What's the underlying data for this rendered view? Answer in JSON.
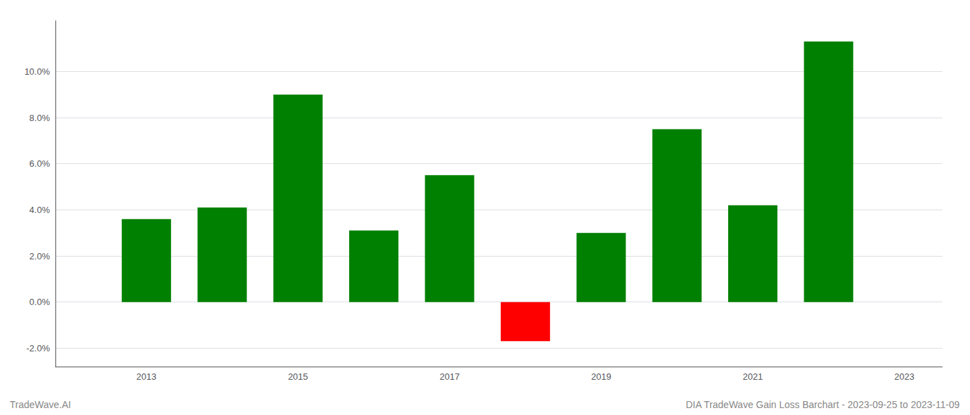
{
  "chart_data": {
    "type": "bar",
    "x": [
      2013,
      2014,
      2015,
      2016,
      2017,
      2018,
      2019,
      2020,
      2021,
      2022
    ],
    "values": [
      0.036,
      0.041,
      0.09,
      0.031,
      0.055,
      -0.017,
      0.03,
      0.075,
      0.042,
      0.113
    ],
    "colors": [
      "#008000",
      "#008000",
      "#008000",
      "#008000",
      "#008000",
      "#ff0000",
      "#008000",
      "#008000",
      "#008000",
      "#008000"
    ],
    "xlim": [
      2011.8,
      2023.5
    ],
    "xticks": [
      2013,
      2015,
      2017,
      2019,
      2021,
      2023
    ],
    "ylim": [
      -0.028,
      0.122
    ],
    "yticks": [
      {
        "value": -0.02,
        "label": "-2.0%"
      },
      {
        "value": 0.0,
        "label": "0.0%"
      },
      {
        "value": 0.02,
        "label": "2.0%"
      },
      {
        "value": 0.04,
        "label": "4.0%"
      },
      {
        "value": 0.06,
        "label": "6.0%"
      },
      {
        "value": 0.08,
        "label": "8.0%"
      },
      {
        "value": 0.1,
        "label": "10.0%"
      }
    ],
    "grid": true,
    "annotations": [
      "TradeWave.AI",
      "DIA TradeWave Gain Loss Barchart - 2023-09-25 to 2023-11-09"
    ]
  }
}
